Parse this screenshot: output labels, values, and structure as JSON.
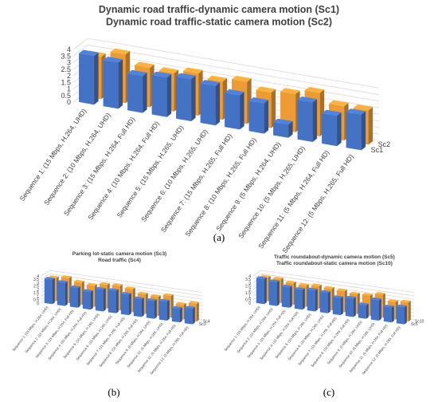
{
  "chart_data": [
    {
      "type": "bar",
      "panel": "(a)",
      "title_lines": [
        "Dynamic road traffic-dynamic camera motion (Sc1)",
        "Dynamic road traffic-static camera motion (Sc2)"
      ],
      "categories": [
        "Sequence 1: (15 Mbps, H.264, UHD)",
        "Sequence 2: (10 Mbps, H.264, UHD)",
        "Sequence 3: (15 Mbps, H.264, Full HD)",
        "Sequence 4: (10 Mbps, H.264, Full HD)",
        "Sequence 5: (15 Mbps, H.265, UHD)",
        "Sequence 6: (10 Mbps, H.265, UHD)",
        "Sequence 7: (15 Mbps, H.265, Full HD)",
        "Sequence 8: (10 Mbps, H.265, Full HD)",
        "Sequence 9: (5 Mbps, H.264, UHD)",
        "Sequence 10: (5 Mbps, H.265, UHD)",
        "Sequence 11: (5 Mbps, H.264, Full HD)",
        "Sequence 12: (5 Mbps, H.265, Full HD)"
      ],
      "series": [
        {
          "name": "Sc1",
          "values": [
            3.7,
            3.5,
            2.8,
            3.0,
            3.2,
            3.0,
            2.6,
            2.3,
            1.0,
            3.0,
            2.3,
            2.7
          ]
        },
        {
          "name": "Sc2",
          "values": [
            3.2,
            3.7,
            3.0,
            2.9,
            3.2,
            2.9,
            3.2,
            2.7,
            2.9,
            3.3,
            2.6,
            2.6
          ]
        }
      ],
      "ylim": [
        0,
        4
      ],
      "yticks": [
        "0",
        "0.5",
        "1",
        "1.5",
        "2",
        "2.5",
        "3",
        "3.5",
        "4"
      ],
      "colors": {
        "Sc1": "#4472c4",
        "Sc2": "#ed9b33"
      }
    },
    {
      "type": "bar",
      "panel": "(b)",
      "title_lines": [
        "Parking lot-static camera motion (Sc3)",
        "Road traffic (Sc4)"
      ],
      "categories": [
        "Sequence 1: (15 Mbps, H.264, UHD)",
        "Sequence 2: (10 Mbps, H.264, UHD)",
        "Sequence 3: (15 Mbps, H.264, Full HD)",
        "Sequence 4: (10 Mbps, H.264, Full HD)",
        "Sequence 5: (15 Mbps, H.265, UHD)",
        "Sequence 6: (10 Mbps, H.265, UHD)",
        "Sequence 7: (15 Mbps, H.265, Full HD)",
        "Sequence 8: (10 Mbps, H.265, Full HD)",
        "Sequence 9: (5 Mbps, H.264, UHD)",
        "Sequence 10: (5 Mbps, H.265, UHD)",
        "Sequence 11: (5 Mbps, H.264, Full HD)",
        "Sequence 12: (5 Mbps, H.265, Full HD)"
      ],
      "series": [
        {
          "name": "Sc3",
          "values": [
            3.6,
            3.4,
            2.9,
            2.6,
            3.2,
            3.3,
            3.0,
            2.6,
            2.6,
            2.8,
            2.0,
            2.3
          ]
        },
        {
          "name": "Sc4",
          "values": [
            3.4,
            3.7,
            3.3,
            3.1,
            3.5,
            3.6,
            3.4,
            2.9,
            2.8,
            3.2,
            2.2,
            2.6
          ]
        }
      ],
      "ylim": [
        0,
        4
      ],
      "yticks": [
        "0",
        "0.5",
        "1",
        "1.5",
        "2",
        "2.5",
        "3",
        "3.5",
        "4"
      ],
      "colors": {
        "Sc3": "#4472c4",
        "Sc4": "#ed9b33"
      }
    },
    {
      "type": "bar",
      "panel": "(c)",
      "title_lines": [
        "Traffic roundabout-dynamic camera motion (Sc5)",
        "Traffic roundabout-static camera motion (Sc10)"
      ],
      "categories": [
        "Sequence 1: (15 Mbps, H.264, UHD)",
        "Sequence 2: (10 Mbps, H.264, UHD)",
        "Sequence 3: (15 Mbps, H.264, Full HD)",
        "Sequence 4: (10 Mbps, H.264, Full HD)",
        "Sequence 5: (15 Mbps, H.265, UHD)",
        "Sequence 6: (10 Mbps, H.265, UHD)",
        "Sequence 7: (15 Mbps, H.265, Full HD)",
        "Sequence 8: (10 Mbps, H.265, Full HD)",
        "Sequence 9: (5 Mbps, H.264, UHD)",
        "Sequence 10: (5 Mbps, H.265, UHD)",
        "Sequence 11: (5 Mbps, H.264, Full HD)",
        "Sequence 12: (5 Mbps, H.265, Full HD)"
      ],
      "series": [
        {
          "name": "Sc5",
          "values": [
            3.7,
            3.5,
            3.0,
            2.9,
            3.1,
            3.0,
            2.5,
            2.7,
            2.0,
            3.0,
            2.2,
            2.5
          ]
        },
        {
          "name": "Sc10",
          "values": [
            3.5,
            3.5,
            3.2,
            3.1,
            3.3,
            3.2,
            3.1,
            2.9,
            3.0,
            3.4,
            2.6,
            2.8
          ]
        }
      ],
      "ylim": [
        0,
        4
      ],
      "yticks": [
        "0",
        "0.5",
        "1",
        "1.5",
        "2",
        "2.5",
        "3",
        "3.5",
        "4"
      ],
      "colors": {
        "Sc5": "#4472c4",
        "Sc10": "#ed9b33"
      }
    }
  ]
}
